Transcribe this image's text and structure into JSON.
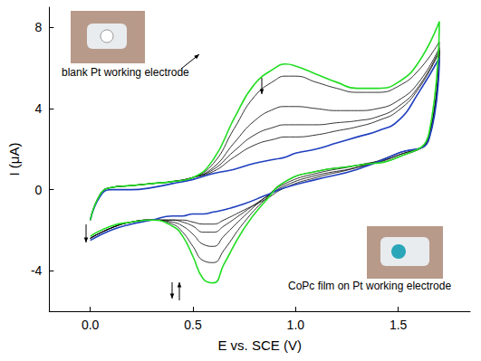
{
  "chart_data": {
    "type": "line",
    "x_label": "E vs. SCE (V)",
    "y_label": "I (μA)",
    "xlim": [
      -0.2,
      1.85
    ],
    "xticks": [
      {
        "value": 0,
        "label": "0.0"
      },
      {
        "value": 0.5,
        "label": "0.5"
      },
      {
        "value": 1.0,
        "label": "1.0"
      },
      {
        "value": 1.5,
        "label": "1.5"
      }
    ],
    "ylim": [
      -6,
      9
    ],
    "yticks": [
      -4,
      0,
      4,
      8
    ],
    "grid": false,
    "x": [
      0,
      0.05,
      0.1,
      0.2,
      0.3,
      0.4,
      0.5,
      0.6,
      0.7,
      0.8,
      0.9,
      0.95,
      1.0,
      1.1,
      1.2,
      1.3,
      1.4,
      1.5,
      1.6,
      1.7,
      1.65,
      1.5,
      1.3,
      1.1,
      0.95,
      0.85,
      0.75,
      0.65,
      0.6,
      0.55,
      0.5,
      0.45,
      0.4,
      0.3,
      0.2,
      0.1,
      0.0
    ],
    "series": [
      {
        "color": "#000000",
        "values": [
          -1.5,
          -0.2,
          0.1,
          0.2,
          0.3,
          0.4,
          0.6,
          0.9,
          1.6,
          2.2,
          2.5,
          2.6,
          2.6,
          2.7,
          2.9,
          3.1,
          3.4,
          3.9,
          5.0,
          6.8,
          2.5,
          1.8,
          1.1,
          0.6,
          0.1,
          -0.5,
          -1.0,
          -1.5,
          -1.7,
          -1.7,
          -1.6,
          -1.5,
          -1.5,
          -1.5,
          -1.6,
          -1.9,
          -2.4
        ]
      },
      {
        "color": "#000000",
        "values": [
          -1.5,
          -0.2,
          0.1,
          0.2,
          0.3,
          0.4,
          0.6,
          1.0,
          1.9,
          2.7,
          3.1,
          3.2,
          3.2,
          3.2,
          3.3,
          3.4,
          3.6,
          4.1,
          5.1,
          6.9,
          2.6,
          1.7,
          1.1,
          0.7,
          0.2,
          -0.4,
          -1.1,
          -1.8,
          -2.1,
          -2.1,
          -1.8,
          -1.6,
          -1.5,
          -1.5,
          -1.6,
          -1.9,
          -2.4
        ]
      },
      {
        "color": "#000000",
        "values": [
          -1.5,
          -0.2,
          0.1,
          0.2,
          0.3,
          0.4,
          0.6,
          1.1,
          2.3,
          3.4,
          4.0,
          4.1,
          4.1,
          4.0,
          3.9,
          3.9,
          4.0,
          4.4,
          5.3,
          7.0,
          2.6,
          1.7,
          1.2,
          0.8,
          0.3,
          -0.4,
          -1.3,
          -2.3,
          -2.8,
          -2.7,
          -2.2,
          -1.8,
          -1.6,
          -1.5,
          -1.6,
          -1.9,
          -2.4
        ]
      },
      {
        "color": "#000000",
        "values": [
          -1.5,
          -0.2,
          0.1,
          0.2,
          0.3,
          0.4,
          0.6,
          1.3,
          3.0,
          4.6,
          5.4,
          5.6,
          5.6,
          5.3,
          5.0,
          4.8,
          4.8,
          5.1,
          5.9,
          7.3,
          2.7,
          1.6,
          1.2,
          0.9,
          0.4,
          -0.5,
          -1.6,
          -3.0,
          -3.6,
          -3.5,
          -2.8,
          -2.1,
          -1.7,
          -1.5,
          -1.6,
          -1.9,
          -2.4
        ]
      },
      {
        "color": "#1f3fbf",
        "values": [
          -1.5,
          -0.3,
          0,
          0,
          0.1,
          0.3,
          0.5,
          0.8,
          1.0,
          1.3,
          1.5,
          1.6,
          1.8,
          2.0,
          2.3,
          2.6,
          2.9,
          3.4,
          4.8,
          6.5,
          2.5,
          1.8,
          1.0,
          0.5,
          0.1,
          -0.3,
          -0.7,
          -1.0,
          -1.1,
          -1.2,
          -1.2,
          -1.3,
          -1.3,
          -1.5,
          -1.7,
          -2.0,
          -2.5
        ]
      },
      {
        "color": "#22dd22",
        "values": [
          -1.5,
          -0.2,
          0.1,
          0.2,
          0.3,
          0.4,
          0.6,
          1.5,
          3.5,
          5.2,
          6.0,
          6.2,
          6.1,
          5.7,
          5.3,
          5.0,
          5.0,
          5.3,
          6.3,
          8.3,
          2.8,
          1.6,
          1.2,
          0.9,
          0.4,
          -0.6,
          -1.9,
          -3.7,
          -4.6,
          -4.4,
          -3.3,
          -2.3,
          -1.8,
          -1.5,
          -1.6,
          -1.8,
          -2.3
        ]
      }
    ],
    "annotations": [
      {
        "text": "blank Pt working electrode"
      },
      {
        "text": "CoPc film on Pt working electrode"
      }
    ]
  }
}
